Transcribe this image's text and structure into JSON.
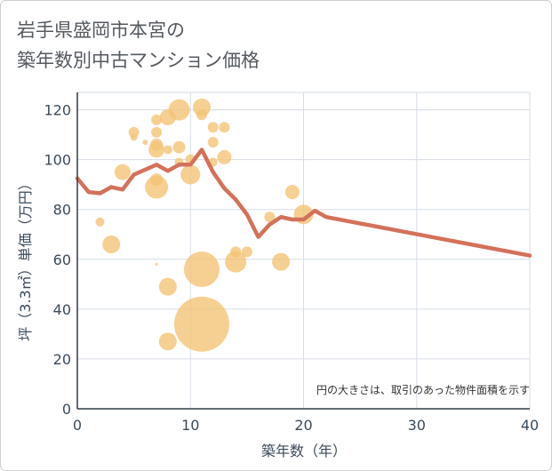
{
  "title": {
    "line1": "岩手県盛岡市本宮の",
    "line2": "築年数別中古マンション価格"
  },
  "colors": {
    "line": "#d4715a",
    "bubble": "#f3c373",
    "grid": "#d6dde6",
    "text": "#3b4a5a"
  },
  "chart_data": {
    "type": "scatter",
    "xlabel": "築年数（年）",
    "ylabel": "坪（3.3㎡）単価（万円）",
    "xlim": [
      0,
      40
    ],
    "ylim": [
      0,
      127
    ],
    "xticks": [
      "0",
      "10",
      "20",
      "30",
      "40"
    ],
    "yticks": [
      "0",
      "20",
      "40",
      "60",
      "80",
      "100",
      "120"
    ],
    "grid": true,
    "note": "円の大きさは、取引のあった物件面積を示す",
    "bubbles": [
      {
        "x": 2,
        "y": 75,
        "r": 5
      },
      {
        "x": 3,
        "y": 66,
        "r": 10
      },
      {
        "x": 4,
        "y": 95,
        "r": 9
      },
      {
        "x": 5,
        "y": 111,
        "r": 6
      },
      {
        "x": 5,
        "y": 109,
        "r": 4
      },
      {
        "x": 6,
        "y": 107,
        "r": 3
      },
      {
        "x": 7,
        "y": 58,
        "r": 1.5
      },
      {
        "x": 7,
        "y": 116,
        "r": 6
      },
      {
        "x": 7,
        "y": 111,
        "r": 6
      },
      {
        "x": 7,
        "y": 106,
        "r": 7
      },
      {
        "x": 7,
        "y": 104,
        "r": 9
      },
      {
        "x": 7,
        "y": 92,
        "r": 7
      },
      {
        "x": 7,
        "y": 89,
        "r": 13
      },
      {
        "x": 8,
        "y": 117,
        "r": 9
      },
      {
        "x": 8,
        "y": 104,
        "r": 5
      },
      {
        "x": 8,
        "y": 49,
        "r": 10
      },
      {
        "x": 8,
        "y": 27,
        "r": 10
      },
      {
        "x": 9,
        "y": 120,
        "r": 12
      },
      {
        "x": 9,
        "y": 105,
        "r": 7
      },
      {
        "x": 9,
        "y": 99,
        "r": 5
      },
      {
        "x": 10,
        "y": 100,
        "r": 6
      },
      {
        "x": 10,
        "y": 94,
        "r": 11
      },
      {
        "x": 11,
        "y": 121,
        "r": 10
      },
      {
        "x": 11,
        "y": 118,
        "r": 6
      },
      {
        "x": 11,
        "y": 56,
        "r": 20
      },
      {
        "x": 11,
        "y": 34,
        "r": 31
      },
      {
        "x": 12,
        "y": 113,
        "r": 6
      },
      {
        "x": 12,
        "y": 107,
        "r": 6
      },
      {
        "x": 12,
        "y": 99,
        "r": 5
      },
      {
        "x": 13,
        "y": 113,
        "r": 6
      },
      {
        "x": 13,
        "y": 101,
        "r": 8
      },
      {
        "x": 14,
        "y": 63,
        "r": 6
      },
      {
        "x": 14,
        "y": 59,
        "r": 12
      },
      {
        "x": 15,
        "y": 63,
        "r": 6
      },
      {
        "x": 17,
        "y": 77,
        "r": 6
      },
      {
        "x": 18,
        "y": 59,
        "r": 10
      },
      {
        "x": 19,
        "y": 87,
        "r": 8
      },
      {
        "x": 20,
        "y": 78,
        "r": 11
      }
    ],
    "series": [
      {
        "x": [
          0,
          1,
          2,
          3,
          4,
          5,
          6,
          7,
          8,
          9,
          10,
          11,
          12,
          13,
          14,
          15,
          16,
          17,
          18,
          19,
          20,
          21,
          22,
          40
        ],
        "values": [
          92.5,
          87,
          86.5,
          89,
          88,
          94,
          96,
          98,
          95.5,
          98,
          98,
          104,
          95,
          88.5,
          84,
          78,
          69,
          74,
          77,
          76,
          76,
          79.5,
          77,
          61.5
        ]
      }
    ]
  }
}
